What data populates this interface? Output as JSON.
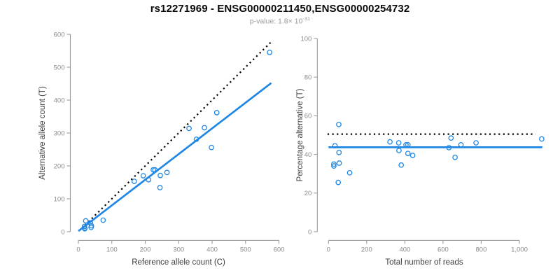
{
  "title": "rs12271969 - ENSG00000211450,ENSG00000254732",
  "subtitle": {
    "text": "p-value: 1.8× 10",
    "exponent": "-31",
    "full_value": "p-value: 1.8×10^-31"
  },
  "chart_data": [
    {
      "name": "allele-count-scatter",
      "type": "scatter",
      "xlabel": "Reference allele count (C)",
      "ylabel": "Alternative allele count (T)",
      "xlim": [
        0,
        600
      ],
      "ylim": [
        0,
        600
      ],
      "grid": false,
      "xticks": {
        "values": [
          0,
          100,
          200,
          300,
          400,
          500,
          600
        ],
        "labels": [
          "0",
          "100",
          "200",
          "300",
          "400",
          "500",
          "600"
        ]
      },
      "yticks": {
        "values": [
          0,
          100,
          200,
          300,
          400,
          500,
          600
        ],
        "labels": [
          "0",
          "100",
          "200",
          "300",
          "400",
          "500",
          "600"
        ]
      },
      "point_color": "#1e87e5",
      "points": [
        [
          572,
          545
        ],
        [
          414,
          362
        ],
        [
          377,
          316
        ],
        [
          331,
          314
        ],
        [
          398,
          256
        ],
        [
          353,
          281
        ],
        [
          265,
          180
        ],
        [
          245,
          171
        ],
        [
          229,
          188
        ],
        [
          224,
          188
        ],
        [
          244,
          134
        ],
        [
          210,
          158
        ],
        [
          194,
          170
        ],
        [
          167,
          153
        ],
        [
          74,
          35
        ],
        [
          22,
          33
        ],
        [
          36,
          27
        ],
        [
          39,
          18
        ],
        [
          18,
          16
        ],
        [
          19,
          11
        ],
        [
          19,
          9
        ],
        [
          38,
          13
        ]
      ],
      "lines": [
        {
          "name": "identity-line",
          "style": "dotted",
          "color": "#000000",
          "x1": 20,
          "y1": 20,
          "x2": 577,
          "y2": 577
        },
        {
          "name": "regression-line",
          "style": "solid",
          "color": "#1e87e5",
          "x1": 0,
          "y1": 2,
          "x2": 577,
          "y2": 452
        }
      ]
    },
    {
      "name": "percentage-alternative-scatter",
      "type": "scatter",
      "xlabel": "Total number of reads",
      "ylabel": "Percentage alternative (T)",
      "xlim": [
        0,
        1150
      ],
      "ylim": [
        0,
        100
      ],
      "grid": false,
      "xticks": {
        "values": [
          0,
          200,
          400,
          600,
          800,
          1000
        ],
        "labels": [
          "0",
          "200",
          "400",
          "600",
          "800",
          "1,000"
        ]
      },
      "yticks": {
        "values": [
          0,
          20,
          40,
          60,
          80,
          100
        ],
        "labels": [
          "0",
          "20",
          "40",
          "60",
          "80",
          "100"
        ]
      },
      "point_color": "#1e87e5",
      "points": [
        [
          54,
          55.5
        ],
        [
          34,
          44.5
        ],
        [
          55,
          41
        ],
        [
          28,
          35
        ],
        [
          28,
          34
        ],
        [
          56,
          35.5
        ],
        [
          111,
          30.5
        ],
        [
          51,
          25.5
        ],
        [
          322,
          46.5
        ],
        [
          368,
          46
        ],
        [
          406,
          45
        ],
        [
          416,
          45
        ],
        [
          369,
          42
        ],
        [
          416,
          40.5
        ],
        [
          441,
          39.5
        ],
        [
          381,
          34.5
        ],
        [
          642,
          48.5
        ],
        [
          631,
          43.5
        ],
        [
          663,
          38.5
        ],
        [
          694,
          45
        ],
        [
          773,
          46
        ],
        [
          1117,
          48
        ]
      ],
      "lines": [
        {
          "name": "expected-50-percent-line",
          "style": "dotted",
          "color": "#000000",
          "x1": -5,
          "y1": 50.5,
          "x2": 1085,
          "y2": 50.5
        },
        {
          "name": "mean-percentage-line",
          "style": "solid",
          "color": "#1e87e5",
          "x1": 0,
          "y1": 43.7,
          "x2": 1120,
          "y2": 43.7
        }
      ]
    }
  ]
}
